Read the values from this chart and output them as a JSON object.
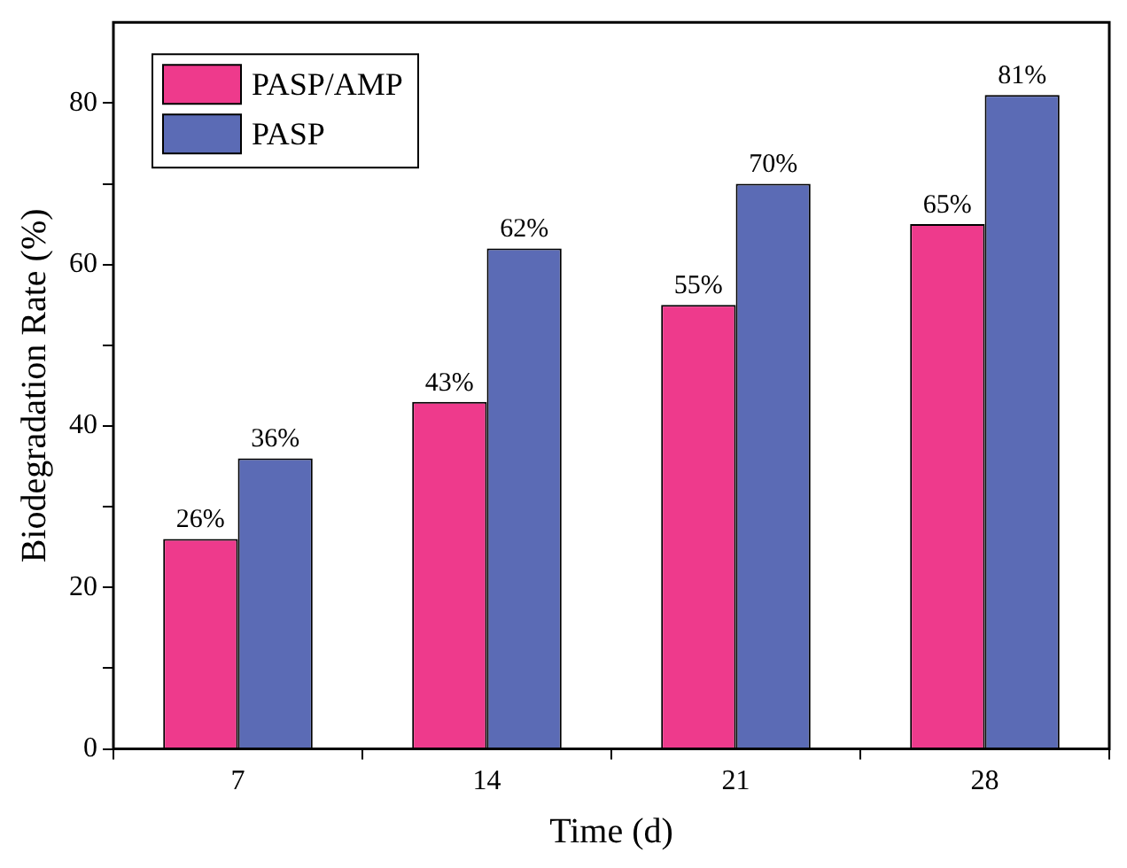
{
  "chart_data": {
    "type": "bar",
    "xlabel": "Time (d)",
    "ylabel": "Biodegradation Rate (%)",
    "categories": [
      "7",
      "14",
      "21",
      "28"
    ],
    "series": [
      {
        "name": "PASP/AMP",
        "color": "#ee3a8c",
        "values": [
          26,
          43,
          55,
          65
        ],
        "value_labels": [
          "26%",
          "43%",
          "55%",
          "65%"
        ]
      },
      {
        "name": "PASP",
        "color": "#5b6bb5",
        "values": [
          36,
          62,
          70,
          81
        ],
        "value_labels": [
          "36%",
          "62%",
          "70%",
          "81%"
        ]
      }
    ],
    "ylim": [
      0,
      90
    ],
    "yticks": [
      0,
      {
        "value": 10,
        "label": null
      },
      20,
      {
        "value": 30,
        "label": null
      },
      40,
      {
        "value": 50,
        "label": null
      },
      60,
      {
        "value": 70,
        "label": null
      },
      80
    ],
    "grid": false,
    "legend": "top left"
  }
}
